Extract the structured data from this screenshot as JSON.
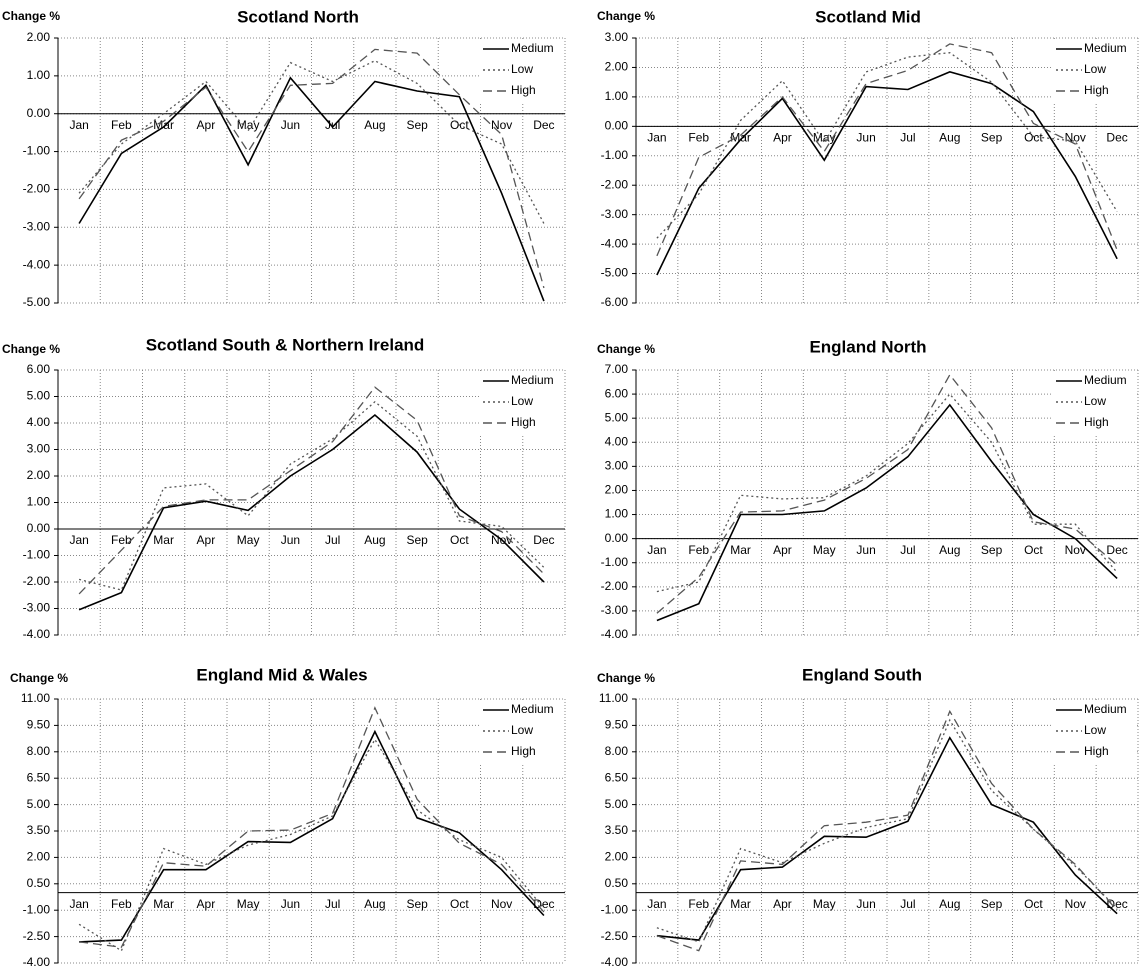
{
  "chart_data": [
    {
      "type": "line",
      "title": "Scotland North",
      "y_label": "Change %",
      "categories": [
        "Jan",
        "Feb",
        "Mar",
        "Apr",
        "May",
        "Jun",
        "Jul",
        "Aug",
        "Sep",
        "Oct",
        "Nov",
        "Dec"
      ],
      "series": [
        {
          "name": "Medium",
          "color": "#000000",
          "line_style": "solid",
          "values": [
            -2.9,
            -1.05,
            -0.35,
            0.75,
            -1.35,
            0.95,
            -0.35,
            0.85,
            0.6,
            0.45,
            -2.1,
            -4.95
          ]
        },
        {
          "name": "Low",
          "color": "#555555",
          "line_style": "dotted",
          "values": [
            -2.1,
            -0.8,
            0.0,
            0.85,
            -0.45,
            1.35,
            0.85,
            1.4,
            0.8,
            -0.3,
            -0.8,
            -2.9
          ]
        },
        {
          "name": "High",
          "color": "#555555",
          "line_style": "dashed",
          "values": [
            -2.25,
            -0.7,
            -0.2,
            0.7,
            -1.0,
            0.75,
            0.8,
            1.7,
            1.6,
            0.5,
            -0.55,
            -4.6
          ]
        }
      ],
      "ylim": [
        -5,
        2
      ],
      "yticks": [
        {
          "value": -5,
          "label": "-5.00"
        },
        {
          "value": -4,
          "label": "-4.00"
        },
        {
          "value": -3,
          "label": "-3.00"
        },
        {
          "value": -2,
          "label": "-2.00"
        },
        {
          "value": -1,
          "label": "-1.00"
        },
        {
          "value": 0,
          "label": "0.00"
        },
        {
          "value": 1,
          "label": "1.00"
        },
        {
          "value": 2,
          "label": "2.00"
        }
      ],
      "grid": true
    },
    {
      "type": "line",
      "title": "Scotland Mid",
      "y_label": "Change %",
      "categories": [
        "Jan",
        "Feb",
        "Mar",
        "Apr",
        "May",
        "Jun",
        "Jul",
        "Aug",
        "Sep",
        "Oct",
        "Nov",
        "Dec"
      ],
      "series": [
        {
          "name": "Medium",
          "color": "#000000",
          "line_style": "solid",
          "values": [
            -5.05,
            -2.1,
            -0.45,
            0.95,
            -1.15,
            1.35,
            1.25,
            1.85,
            1.45,
            0.5,
            -1.7,
            -4.5
          ]
        },
        {
          "name": "Low",
          "color": "#555555",
          "line_style": "dotted",
          "values": [
            -3.8,
            -2.3,
            0.2,
            1.55,
            -0.55,
            1.85,
            2.35,
            2.5,
            1.5,
            -0.35,
            -0.5,
            -2.9
          ]
        },
        {
          "name": "High",
          "color": "#555555",
          "line_style": "dashed",
          "values": [
            -4.4,
            -1.05,
            -0.3,
            1.0,
            -0.85,
            1.45,
            1.9,
            2.8,
            2.5,
            0.1,
            -0.6,
            -4.2
          ]
        }
      ],
      "ylim": [
        -6,
        3
      ],
      "yticks": [
        {
          "value": -6,
          "label": "-6.00"
        },
        {
          "value": -5,
          "label": "-5.00"
        },
        {
          "value": -4,
          "label": "-4.00"
        },
        {
          "value": -3,
          "label": "-3.00"
        },
        {
          "value": -2,
          "label": "-2.00"
        },
        {
          "value": -1,
          "label": "-1.00"
        },
        {
          "value": 0,
          "label": "0.00"
        },
        {
          "value": 1,
          "label": "1.00"
        },
        {
          "value": 2,
          "label": "2.00"
        },
        {
          "value": 3,
          "label": "3.00"
        }
      ],
      "grid": true
    },
    {
      "type": "line",
      "title": "Scotland South & Northern Ireland",
      "y_label": "Change %",
      "categories": [
        "Jan",
        "Feb",
        "Mar",
        "Apr",
        "May",
        "Jun",
        "Jul",
        "Aug",
        "Sep",
        "Oct",
        "Nov",
        "Dec"
      ],
      "series": [
        {
          "name": "Medium",
          "color": "#000000",
          "line_style": "solid",
          "values": [
            -3.05,
            -2.4,
            0.8,
            1.05,
            0.7,
            2.0,
            3.0,
            4.3,
            2.9,
            0.75,
            -0.4,
            -2.0
          ]
        },
        {
          "name": "Low",
          "color": "#555555",
          "line_style": "dotted",
          "values": [
            -1.9,
            -2.3,
            1.55,
            1.7,
            0.5,
            2.45,
            3.4,
            4.8,
            3.5,
            0.3,
            0.1,
            -1.45
          ]
        },
        {
          "name": "High",
          "color": "#555555",
          "line_style": "dashed",
          "values": [
            -2.45,
            -0.8,
            0.85,
            1.1,
            1.1,
            2.2,
            3.3,
            5.35,
            4.1,
            0.5,
            -0.1,
            -1.7
          ]
        }
      ],
      "ylim": [
        -4,
        6
      ],
      "yticks": [
        {
          "value": -4,
          "label": "-4.00"
        },
        {
          "value": -3,
          "label": "-3.00"
        },
        {
          "value": -2,
          "label": "-2.00"
        },
        {
          "value": -1,
          "label": "-1.00"
        },
        {
          "value": 0,
          "label": "0.00"
        },
        {
          "value": 1,
          "label": "1.00"
        },
        {
          "value": 2,
          "label": "2.00"
        },
        {
          "value": 3,
          "label": "3.00"
        },
        {
          "value": 4,
          "label": "4.00"
        },
        {
          "value": 5,
          "label": "5.00"
        },
        {
          "value": 6,
          "label": "6.00"
        }
      ],
      "grid": true
    },
    {
      "type": "line",
      "title": "England North",
      "y_label": "Change %",
      "categories": [
        "Jan",
        "Feb",
        "Mar",
        "Apr",
        "May",
        "Jun",
        "Jul",
        "Aug",
        "Sep",
        "Oct",
        "Nov",
        "Dec"
      ],
      "series": [
        {
          "name": "Medium",
          "color": "#000000",
          "line_style": "solid",
          "values": [
            -3.4,
            -2.7,
            1.0,
            1.0,
            1.15,
            2.1,
            3.4,
            5.55,
            3.2,
            1.0,
            0.0,
            -1.65
          ]
        },
        {
          "name": "Low",
          "color": "#555555",
          "line_style": "dotted",
          "values": [
            -2.2,
            -1.8,
            1.8,
            1.65,
            1.7,
            2.6,
            3.95,
            6.0,
            4.0,
            0.6,
            0.6,
            -1.4
          ]
        },
        {
          "name": "High",
          "color": "#555555",
          "line_style": "dashed",
          "values": [
            -3.1,
            -1.6,
            1.1,
            1.15,
            1.6,
            2.5,
            3.7,
            6.8,
            4.6,
            0.7,
            0.4,
            -1.1
          ]
        }
      ],
      "ylim": [
        -4,
        7
      ],
      "yticks": [
        {
          "value": -4,
          "label": "-4.00"
        },
        {
          "value": -3,
          "label": "-3.00"
        },
        {
          "value": -2,
          "label": "-2.00"
        },
        {
          "value": -1,
          "label": "-1.00"
        },
        {
          "value": 0,
          "label": "0.00"
        },
        {
          "value": 1,
          "label": "1.00"
        },
        {
          "value": 2,
          "label": "2.00"
        },
        {
          "value": 3,
          "label": "3.00"
        },
        {
          "value": 4,
          "label": "4.00"
        },
        {
          "value": 5,
          "label": "5.00"
        },
        {
          "value": 6,
          "label": "6.00"
        },
        {
          "value": 7,
          "label": "7.00"
        }
      ],
      "grid": true
    },
    {
      "type": "line",
      "title": "England Mid & Wales",
      "y_label": "Change %",
      "categories": [
        "Jan",
        "Feb",
        "Mar",
        "Apr",
        "May",
        "Jun",
        "Jul",
        "Aug",
        "Sep",
        "Oct",
        "Nov",
        "Dec"
      ],
      "series": [
        {
          "name": "Medium",
          "color": "#000000",
          "line_style": "solid",
          "values": [
            -2.8,
            -2.7,
            1.3,
            1.3,
            2.9,
            2.85,
            4.2,
            9.15,
            4.25,
            3.4,
            1.3,
            -1.3
          ]
        },
        {
          "name": "Low",
          "color": "#555555",
          "line_style": "dotted",
          "values": [
            -1.8,
            -3.3,
            2.5,
            1.6,
            2.7,
            3.3,
            4.35,
            8.7,
            4.7,
            3.0,
            2.0,
            -0.9
          ]
        },
        {
          "name": "High",
          "color": "#555555",
          "line_style": "dashed",
          "values": [
            -2.8,
            -3.1,
            1.7,
            1.5,
            3.5,
            3.55,
            4.5,
            10.5,
            5.3,
            2.8,
            1.6,
            -1.1
          ]
        }
      ],
      "ylim": [
        -4,
        11
      ],
      "yticks": [
        {
          "value": -4,
          "label": "-4.00"
        },
        {
          "value": -2.5,
          "label": "-2.50"
        },
        {
          "value": -1,
          "label": "-1.00"
        },
        {
          "value": 0.5,
          "label": "0.50"
        },
        {
          "value": 2,
          "label": "2.00"
        },
        {
          "value": 3.5,
          "label": "3.50"
        },
        {
          "value": 5,
          "label": "5.00"
        },
        {
          "value": 6.5,
          "label": "6.50"
        },
        {
          "value": 8,
          "label": "8.00"
        },
        {
          "value": 9.5,
          "label": "9.50"
        },
        {
          "value": 11,
          "label": "11.00"
        }
      ],
      "grid": true
    },
    {
      "type": "line",
      "title": "England South",
      "y_label": "Change %",
      "categories": [
        "Jan",
        "Feb",
        "Mar",
        "Apr",
        "May",
        "Jun",
        "Jul",
        "Aug",
        "Sep",
        "Oct",
        "Nov",
        "Dec"
      ],
      "series": [
        {
          "name": "Medium",
          "color": "#000000",
          "line_style": "solid",
          "values": [
            -2.45,
            -2.7,
            1.3,
            1.45,
            3.2,
            3.15,
            4.05,
            8.8,
            5.0,
            4.0,
            1.0,
            -1.2
          ]
        },
        {
          "name": "Low",
          "color": "#555555",
          "line_style": "dotted",
          "values": [
            -2.0,
            -2.8,
            2.5,
            1.7,
            2.8,
            3.7,
            4.2,
            9.8,
            5.8,
            3.6,
            1.5,
            -0.9
          ]
        },
        {
          "name": "High",
          "color": "#555555",
          "line_style": "dashed",
          "values": [
            -2.45,
            -3.3,
            1.8,
            1.6,
            3.8,
            4.0,
            4.4,
            10.3,
            6.2,
            3.6,
            1.6,
            -1.0
          ]
        }
      ],
      "ylim": [
        -4,
        11
      ],
      "yticks": [
        {
          "value": -4,
          "label": "-4.00"
        },
        {
          "value": -2.5,
          "label": "-2.50"
        },
        {
          "value": -1,
          "label": "-1.00"
        },
        {
          "value": 0.5,
          "label": "0.50"
        },
        {
          "value": 2,
          "label": "2.00"
        },
        {
          "value": 3.5,
          "label": "3.50"
        },
        {
          "value": 5,
          "label": "5.00"
        },
        {
          "value": 6.5,
          "label": "6.50"
        },
        {
          "value": 8,
          "label": "8.00"
        },
        {
          "value": 9.5,
          "label": "9.50"
        },
        {
          "value": 11,
          "label": "11.00"
        }
      ],
      "grid": true
    }
  ]
}
